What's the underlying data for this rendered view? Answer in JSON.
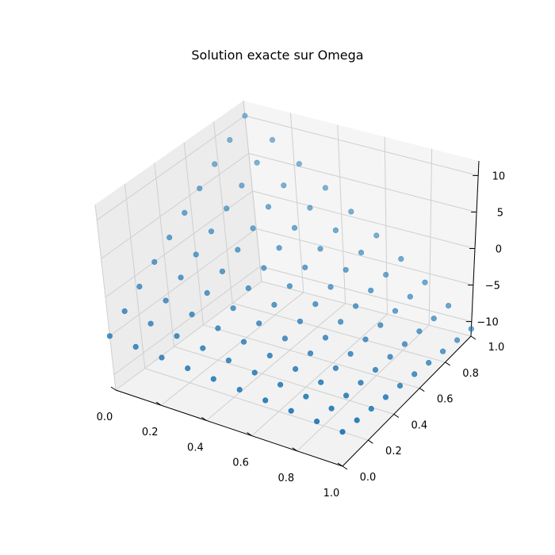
{
  "chart_data": {
    "type": "scatter",
    "projection": "3d",
    "title": "Solution exacte sur Omega",
    "xlabel": "",
    "ylabel": "",
    "zlabel": "",
    "xlim": [
      0,
      1
    ],
    "ylim": [
      0,
      1
    ],
    "zlim": [
      -12,
      12
    ],
    "x_ticks": [
      "0.0",
      "0.2",
      "0.4",
      "0.6",
      "0.8",
      "1.0"
    ],
    "y_ticks": [
      "0.0",
      "0.2",
      "0.4",
      "0.6",
      "0.8",
      "1.0"
    ],
    "z_ticks": [
      "10",
      "5",
      "0",
      "−5",
      "−10"
    ],
    "grid": true,
    "marker_color": "#1f77b4",
    "points_note_x": [
      0.0,
      0.111,
      0.222,
      0.333,
      0.444,
      0.556,
      0.667,
      0.778,
      0.889,
      1.0
    ],
    "points_note_y": [
      0.0,
      0.111,
      0.222,
      0.333,
      0.444,
      0.556,
      0.667,
      0.778,
      0.889,
      1.0
    ],
    "z_function": "values decrease from about 10 at x=0,y=1 to about -11 at x=1,y=1 and about -7 at x=1,y=0",
    "corner_z": {
      "x0_y0": -5,
      "x0_y1": 10,
      "x1_y0": -7,
      "x1_y1": -11
    }
  }
}
